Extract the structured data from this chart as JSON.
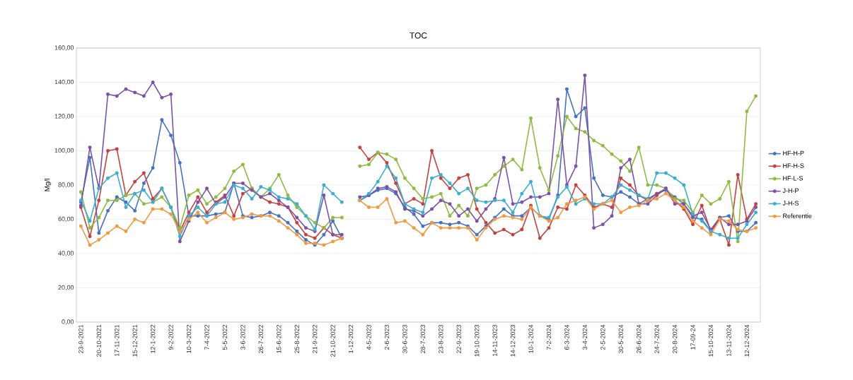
{
  "chart_data": {
    "type": "line",
    "title": "TOC",
    "ylabel": "Mg/l",
    "categories": [
      "23-9-2021",
      null,
      "20-10-2021",
      null,
      "17-11-2021",
      null,
      "15-12-2021",
      null,
      "12-1-2022",
      null,
      "9-2-2022",
      null,
      "10-3-2022",
      null,
      "7-4-2022",
      null,
      "5-5-2022",
      null,
      "3-6-2022",
      null,
      "26-7-2022",
      null,
      "15-6-2022",
      null,
      "25-8-2022",
      null,
      "21-9-2022",
      null,
      "21-10-2022",
      null,
      "1-12-2022",
      null,
      "4-5-2023",
      null,
      "2-6-2023",
      null,
      "30-6-2023",
      null,
      "28-7-2023",
      null,
      "23-8-2023",
      null,
      "22-9-2023",
      null,
      "19-10-2023",
      null,
      "14-11-2023",
      null,
      "14-12-2023",
      null,
      "10-1-2024",
      null,
      "7-2-2024",
      null,
      "6-3-2024",
      null,
      "3-4-2024",
      null,
      "2-5-2024",
      null,
      "30-5-2024",
      null,
      "26-6-2024",
      null,
      "24-7-2024",
      null,
      "20-8-2024",
      null,
      "17-09-24",
      null,
      "15-10-2024",
      null,
      "13-11-2024",
      null,
      "12-12-2024",
      null
    ],
    "series": [
      {
        "name": "HF-H-P",
        "color": "#4472c4",
        "values": [
          70,
          96,
          52,
          65,
          73,
          70,
          65,
          81,
          90,
          118,
          109,
          93,
          62,
          62,
          62,
          63,
          64,
          81,
          62,
          61,
          62,
          64,
          62,
          58,
          53,
          48,
          45,
          51,
          59,
          49,
          null,
          71,
          74,
          77,
          78,
          75,
          67,
          63,
          56,
          58,
          58,
          57,
          58,
          56,
          51,
          56,
          61,
          66,
          62,
          62,
          67,
          62,
          60,
          74,
          136,
          120,
          125,
          84,
          74,
          73,
          76,
          73,
          69,
          72,
          75,
          77,
          73,
          69,
          61,
          60,
          53,
          61,
          62,
          53,
          53,
          58
        ]
      },
      {
        "name": "HF-H-S",
        "color": "#c8413c",
        "values": [
          67,
          50,
          71,
          100,
          101,
          74,
          82,
          87,
          72,
          78,
          67,
          53,
          64,
          73,
          64,
          70,
          74,
          62,
          75,
          78,
          73,
          70,
          69,
          67,
          58,
          51,
          49,
          55,
          51,
          49,
          null,
          102,
          95,
          99,
          93,
          81,
          69,
          72,
          69,
          100,
          84,
          78,
          84,
          86,
          66,
          58,
          52,
          54,
          51,
          54,
          68,
          49,
          55,
          67,
          66,
          80,
          74,
          67,
          69,
          67,
          84,
          80,
          74,
          71,
          75,
          78,
          71,
          66,
          57,
          68,
          53,
          60,
          45,
          86,
          60,
          69
        ]
      },
      {
        "name": "HF-L-S",
        "color": "#8fbc3f",
        "values": [
          76,
          55,
          61,
          71,
          71,
          74,
          75,
          69,
          70,
          73,
          67,
          55,
          74,
          77,
          69,
          73,
          78,
          88,
          92,
          78,
          73,
          78,
          86,
          74,
          67,
          62,
          58,
          55,
          61,
          61,
          null,
          91,
          92,
          99,
          98,
          95,
          84,
          78,
          72,
          73,
          75,
          62,
          68,
          62,
          78,
          80,
          86,
          91,
          95,
          89,
          119,
          90,
          77,
          97,
          120,
          113,
          111,
          106,
          103,
          98,
          94,
          88,
          102,
          80,
          80,
          78,
          72,
          71,
          64,
          74,
          69,
          72,
          82,
          47,
          123,
          132
        ]
      },
      {
        "name": "J-H-P",
        "color": "#7b52ab",
        "values": [
          68,
          102,
          78,
          133,
          132,
          136,
          134,
          132,
          140,
          131,
          133,
          47,
          59,
          70,
          78,
          69,
          73,
          81,
          81,
          77,
          73,
          75,
          71,
          67,
          61,
          55,
          53,
          74,
          51,
          51,
          null,
          73,
          74,
          78,
          79,
          76,
          66,
          65,
          62,
          66,
          71,
          69,
          62,
          66,
          59,
          66,
          72,
          96,
          69,
          70,
          73,
          73,
          75,
          130,
          80,
          91,
          144,
          55,
          57,
          62,
          90,
          95,
          69,
          69,
          74,
          78,
          69,
          69,
          62,
          64,
          54,
          61,
          57,
          57,
          59,
          67
        ]
      },
      {
        "name": "J-H-S",
        "color": "#36b0d4",
        "values": [
          71,
          59,
          78,
          84,
          87,
          67,
          75,
          77,
          70,
          78,
          67,
          50,
          62,
          67,
          62,
          69,
          70,
          80,
          78,
          72,
          79,
          77,
          73,
          72,
          69,
          62,
          54,
          80,
          75,
          70,
          null,
          71,
          75,
          82,
          91,
          84,
          69,
          66,
          64,
          84,
          86,
          81,
          75,
          78,
          71,
          70,
          71,
          71,
          64,
          75,
          82,
          62,
          61,
          73,
          79,
          69,
          72,
          69,
          69,
          73,
          80,
          77,
          74,
          72,
          87,
          87,
          84,
          80,
          63,
          59,
          53,
          51,
          49,
          49,
          57,
          64
        ]
      },
      {
        "name": "Referentie",
        "color": "#f5993d",
        "values": [
          56,
          45,
          48,
          52,
          56,
          53,
          60,
          58,
          66,
          66,
          63,
          53,
          60,
          64,
          58,
          61,
          64,
          60,
          61,
          63,
          62,
          62,
          59,
          55,
          51,
          46,
          46,
          45,
          47,
          49,
          null,
          71,
          67,
          67,
          72,
          58,
          59,
          55,
          51,
          58,
          55,
          55,
          55,
          55,
          48,
          55,
          60,
          62,
          61,
          60,
          67,
          62,
          59,
          61,
          69,
          71,
          73,
          66,
          69,
          71,
          64,
          67,
          68,
          71,
          72,
          75,
          71,
          67,
          59,
          55,
          51,
          60,
          59,
          54,
          53,
          55
        ]
      }
    ],
    "ylim": [
      0,
      160
    ],
    "yticks": [
      {
        "value": 0,
        "label": "0,00"
      },
      {
        "value": 20,
        "label": "20,00"
      },
      {
        "value": 40,
        "label": "40,00"
      },
      {
        "value": 60,
        "label": "60,00"
      },
      {
        "value": 80,
        "label": "80,00"
      },
      {
        "value": 100,
        "label": "100,00"
      },
      {
        "value": 120,
        "label": "120,00"
      },
      {
        "value": 140,
        "label": "140,00"
      },
      {
        "value": 160,
        "label": "160,00"
      }
    ],
    "grid": "y",
    "legend": "right",
    "marker": "circle",
    "line_style": "solid"
  }
}
